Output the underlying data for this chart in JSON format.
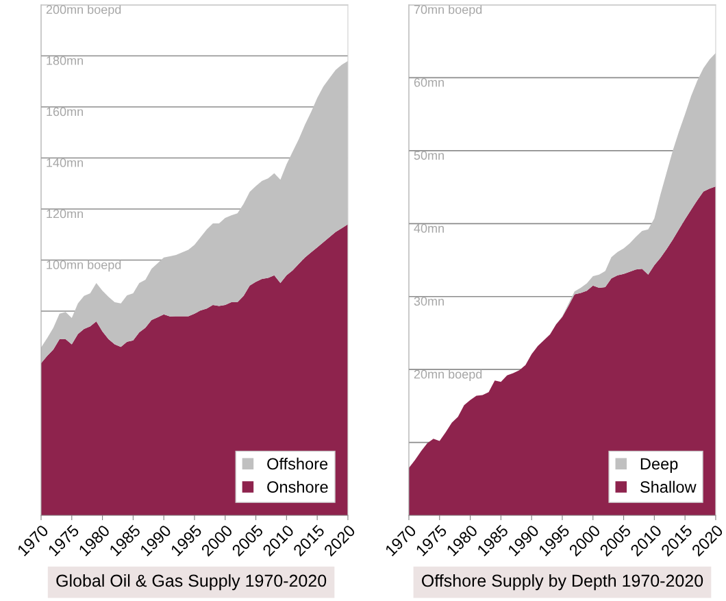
{
  "chart_data": [
    {
      "type": "area",
      "stacked": true,
      "title": "Global Oil & Gas Supply 1970-2020",
      "legend": "bottom right",
      "grid": "y",
      "x": [
        1970,
        1971,
        1972,
        1973,
        1974,
        1975,
        1976,
        1977,
        1978,
        1979,
        1980,
        1981,
        1982,
        1983,
        1984,
        1985,
        1986,
        1987,
        1988,
        1989,
        1990,
        1991,
        1992,
        1993,
        1994,
        1995,
        1996,
        1997,
        1998,
        1999,
        2000,
        2001,
        2002,
        2003,
        2004,
        2005,
        2006,
        2007,
        2008,
        2009,
        2010,
        2011,
        2012,
        2013,
        2014,
        2015,
        2016,
        2017,
        2018,
        2019,
        2020
      ],
      "xlim": [
        1970,
        2020
      ],
      "xticks": [
        1970,
        1975,
        1980,
        1985,
        1990,
        1995,
        2000,
        2005,
        2010,
        2015,
        2020
      ],
      "ylim": [
        0,
        200
      ],
      "yticks": [
        {
          "value": 80,
          "label": null
        },
        {
          "value": 100,
          "label": "100mn boepd"
        },
        {
          "value": 120,
          "label": "120mn"
        },
        {
          "value": 140,
          "label": "140mn"
        },
        {
          "value": 160,
          "label": "160mn"
        },
        {
          "value": 180,
          "label": "180mn"
        },
        {
          "value": 200,
          "label": "200mn boepd"
        }
      ],
      "series": [
        {
          "name": "Onshore",
          "color": "#8e234d",
          "values": [
            59.6,
            62.5,
            65.0,
            69.0,
            69.0,
            67.0,
            71.0,
            73.0,
            74.0,
            76.0,
            72.0,
            69.0,
            67.0,
            66.0,
            68.0,
            68.5,
            71.7,
            73.5,
            76.5,
            77.6,
            78.7,
            77.9,
            78.0,
            78.0,
            78.0,
            79.0,
            80.3,
            81.0,
            82.4,
            82.0,
            82.4,
            83.5,
            83.5,
            86.0,
            90.0,
            91.5,
            92.6,
            93.0,
            94.0,
            91.0,
            94.0,
            96.0,
            98.5,
            101.0,
            103.0,
            105.0,
            107.0,
            109.0,
            111.0,
            112.5,
            114.0
          ]
        },
        {
          "name": "Offshore",
          "color": "#c0c0c0",
          "values": [
            6.2,
            7.0,
            8.5,
            10.0,
            10.7,
            10.3,
            12.0,
            13.0,
            13.0,
            15.0,
            16.0,
            16.6,
            16.5,
            17.0,
            18.2,
            18.5,
            19.3,
            18.8,
            20.1,
            21.2,
            22.3,
            23.6,
            24.0,
            25.0,
            26.0,
            27.0,
            28.7,
            31.0,
            32.0,
            32.4,
            34.1,
            34.0,
            34.8,
            36.0,
            36.7,
            37.5,
            38.4,
            39.0,
            40.0,
            40.5,
            43.5,
            46.5,
            48.9,
            52.0,
            55.0,
            58.5,
            61.0,
            62.3,
            63.5,
            64.0,
            64.0
          ]
        }
      ]
    },
    {
      "type": "area",
      "stacked": true,
      "title": "Offshore Supply by Depth 1970-2020",
      "legend": "bottom right",
      "grid": "y",
      "x": [
        1970,
        1971,
        1972,
        1973,
        1974,
        1975,
        1976,
        1977,
        1978,
        1979,
        1980,
        1981,
        1982,
        1983,
        1984,
        1985,
        1986,
        1987,
        1988,
        1989,
        1990,
        1991,
        1992,
        1993,
        1994,
        1995,
        1996,
        1997,
        1998,
        1999,
        2000,
        2001,
        2002,
        2003,
        2004,
        2005,
        2006,
        2007,
        2008,
        2009,
        2010,
        2011,
        2012,
        2013,
        2014,
        2015,
        2016,
        2017,
        2018,
        2019,
        2020
      ],
      "xlim": [
        1970,
        2020
      ],
      "xticks": [
        1970,
        1975,
        1980,
        1985,
        1990,
        1995,
        2000,
        2005,
        2010,
        2015,
        2020
      ],
      "ylim": [
        0,
        70
      ],
      "yticks": [
        {
          "value": 10,
          "label": null
        },
        {
          "value": 20,
          "label": "20mn boepd"
        },
        {
          "value": 30,
          "label": "30mn"
        },
        {
          "value": 40,
          "label": "40mn"
        },
        {
          "value": 50,
          "label": "50mn"
        },
        {
          "value": 60,
          "label": "60mn"
        },
        {
          "value": 70,
          "label": "70mn boepd"
        }
      ],
      "series": [
        {
          "name": "Shallow",
          "color": "#8e234d",
          "values": [
            6.5,
            7.6,
            8.8,
            9.9,
            10.5,
            10.2,
            11.4,
            12.7,
            13.5,
            15.1,
            15.8,
            16.4,
            16.5,
            16.9,
            18.5,
            18.3,
            19.2,
            19.5,
            19.9,
            20.6,
            22.1,
            23.2,
            24.0,
            24.8,
            26.2,
            27.2,
            28.7,
            30.3,
            30.5,
            30.8,
            31.5,
            31.2,
            31.3,
            32.5,
            32.9,
            33.1,
            33.4,
            33.7,
            33.8,
            33.0,
            34.3,
            35.3,
            36.5,
            37.8,
            39.2,
            40.6,
            41.9,
            43.2,
            44.4,
            44.8,
            45.1
          ]
        },
        {
          "name": "Deep",
          "color": "#c0c0c0",
          "values": [
            0,
            0,
            0,
            0,
            0,
            0,
            0,
            0,
            0,
            0,
            0,
            0,
            0,
            0,
            0,
            0,
            0,
            0,
            0,
            0,
            0,
            0,
            0,
            0,
            0,
            0.1,
            0.3,
            0.4,
            0.7,
            1.0,
            1.3,
            1.8,
            2.2,
            2.9,
            3.2,
            3.5,
            3.9,
            4.5,
            5.2,
            6.2,
            6.4,
            8.7,
            10.5,
            12.2,
            13.4,
            14.4,
            15.6,
            16.4,
            16.9,
            17.7,
            18.3
          ]
        }
      ]
    }
  ]
}
